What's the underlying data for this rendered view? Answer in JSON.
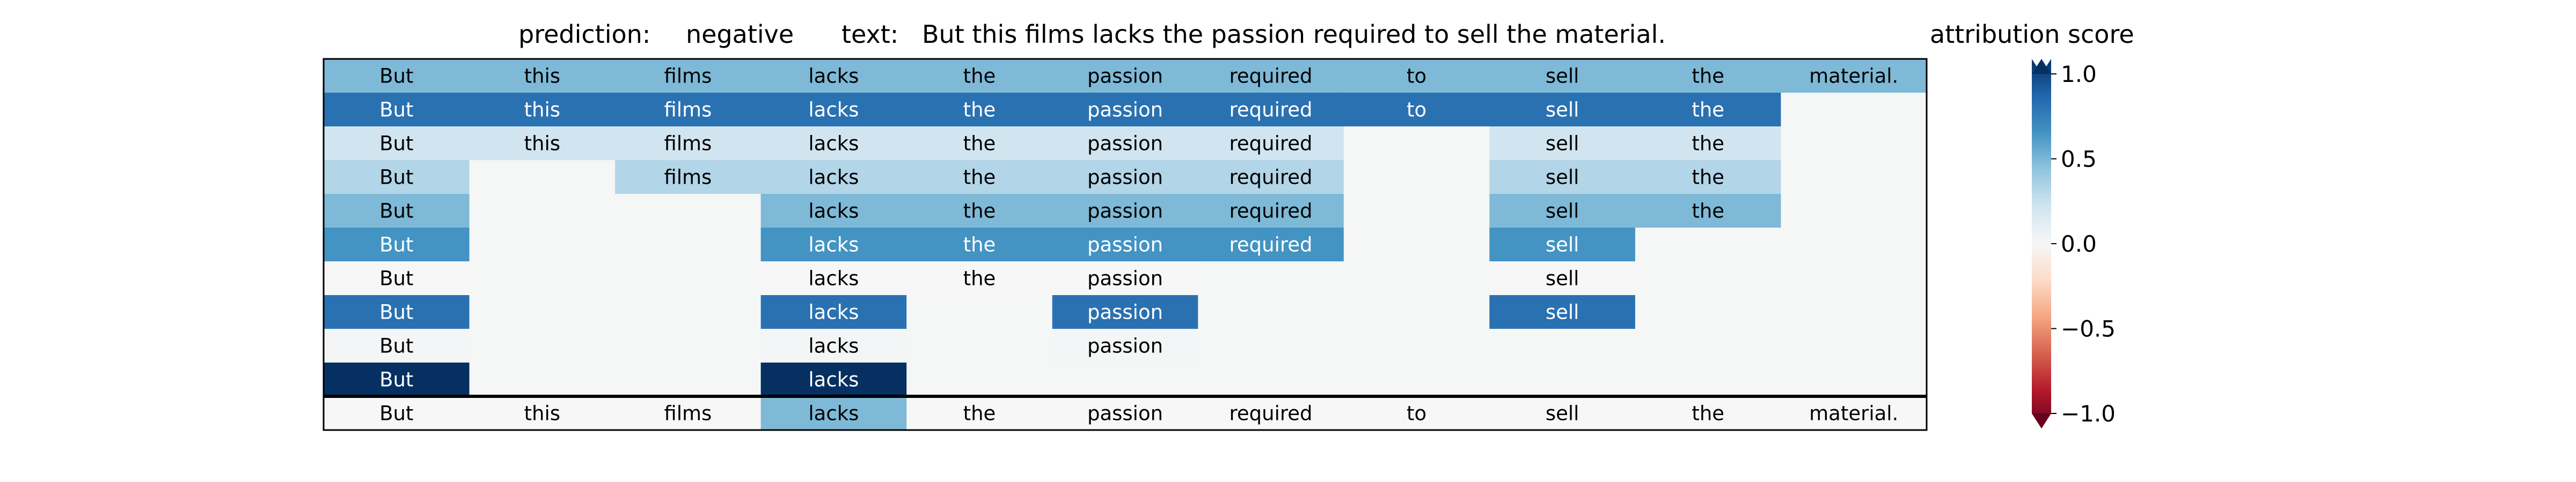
{
  "header": {
    "prediction_label": "prediction:",
    "prediction_value": "negative",
    "text_label": "text:",
    "text_value": "But this films lacks the passion required to sell the material."
  },
  "colorbar": {
    "title": "attribution score",
    "ticks": [
      1.0,
      0.5,
      0.0,
      -0.5,
      -1.0
    ],
    "tick_labels": [
      "1.0",
      "0.5",
      "0.0",
      "−0.5",
      "−1.0"
    ],
    "colormap": "RdBu",
    "range": [
      -1.0,
      1.0
    ]
  },
  "chart_data": {
    "type": "heatmap",
    "title": "prediction:  negative     text:  But this films lacks the passion required to sell the material.",
    "tokens": [
      "But",
      "this",
      "films",
      "lacks",
      "the",
      "passion",
      "required",
      "to",
      "sell",
      "the",
      "material."
    ],
    "rows": [
      {
        "labels": [
          "But",
          "this",
          "films",
          "lacks",
          "the",
          "passion",
          "required",
          "to",
          "sell",
          "the",
          "material."
        ],
        "values": [
          0.45,
          0.45,
          0.45,
          0.45,
          0.45,
          0.45,
          0.45,
          0.45,
          0.45,
          0.45,
          0.45
        ]
      },
      {
        "labels": [
          "But",
          "this",
          "films",
          "lacks",
          "the",
          "passion",
          "required",
          "to",
          "sell",
          "the",
          ""
        ],
        "values": [
          0.75,
          0.75,
          0.75,
          0.75,
          0.75,
          0.75,
          0.75,
          0.75,
          0.75,
          0.75,
          null
        ]
      },
      {
        "labels": [
          "But",
          "this",
          "films",
          "lacks",
          "the",
          "passion",
          "required",
          "",
          "sell",
          "the",
          ""
        ],
        "values": [
          0.2,
          0.2,
          0.2,
          0.2,
          0.2,
          0.2,
          0.2,
          null,
          0.2,
          0.2,
          null
        ]
      },
      {
        "labels": [
          "But",
          "",
          "films",
          "lacks",
          "the",
          "passion",
          "required",
          "",
          "sell",
          "the",
          ""
        ],
        "values": [
          0.3,
          null,
          0.3,
          0.3,
          0.3,
          0.3,
          0.3,
          null,
          0.3,
          0.3,
          null
        ]
      },
      {
        "labels": [
          "But",
          "",
          "",
          "lacks",
          "the",
          "passion",
          "required",
          "",
          "sell",
          "the",
          ""
        ],
        "values": [
          0.45,
          null,
          null,
          0.45,
          0.45,
          0.45,
          0.45,
          null,
          0.45,
          0.45,
          null
        ]
      },
      {
        "labels": [
          "But",
          "",
          "",
          "lacks",
          "the",
          "passion",
          "required",
          "",
          "sell",
          "",
          ""
        ],
        "values": [
          0.6,
          null,
          null,
          0.6,
          0.6,
          0.6,
          0.6,
          null,
          0.6,
          null,
          null
        ]
      },
      {
        "labels": [
          "But",
          "",
          "",
          "lacks",
          "the",
          "passion",
          "",
          "",
          "sell",
          "",
          ""
        ],
        "values": [
          0.0,
          null,
          null,
          0.0,
          0.0,
          0.0,
          null,
          null,
          0.0,
          null,
          null
        ]
      },
      {
        "labels": [
          "But",
          "",
          "",
          "lacks",
          "",
          "passion",
          "",
          "",
          "sell",
          "",
          ""
        ],
        "values": [
          0.75,
          null,
          null,
          0.75,
          null,
          0.75,
          null,
          null,
          0.75,
          null,
          null
        ]
      },
      {
        "labels": [
          "But",
          "",
          "",
          "lacks",
          "",
          "passion",
          "",
          "",
          "",
          "",
          ""
        ],
        "values": [
          0.02,
          null,
          null,
          0.02,
          null,
          0.02,
          null,
          null,
          null,
          null,
          null
        ]
      },
      {
        "labels": [
          "But",
          "",
          "",
          "lacks",
          "",
          "",
          "",
          "",
          "",
          "",
          ""
        ],
        "values": [
          1.0,
          null,
          null,
          1.0,
          null,
          null,
          null,
          null,
          null,
          null,
          null
        ]
      },
      {
        "labels": [
          "But",
          "this",
          "films",
          "lacks",
          "the",
          "passion",
          "required",
          "to",
          "sell",
          "the",
          "material."
        ],
        "values": [
          0.0,
          0.0,
          0.0,
          0.45,
          0.0,
          0.0,
          0.0,
          0.0,
          0.0,
          0.0,
          0.0
        ]
      }
    ],
    "empty_color": "#f5f6f6",
    "separator_before_last_row": true,
    "vmin": -1.0,
    "vmax": 1.0
  }
}
